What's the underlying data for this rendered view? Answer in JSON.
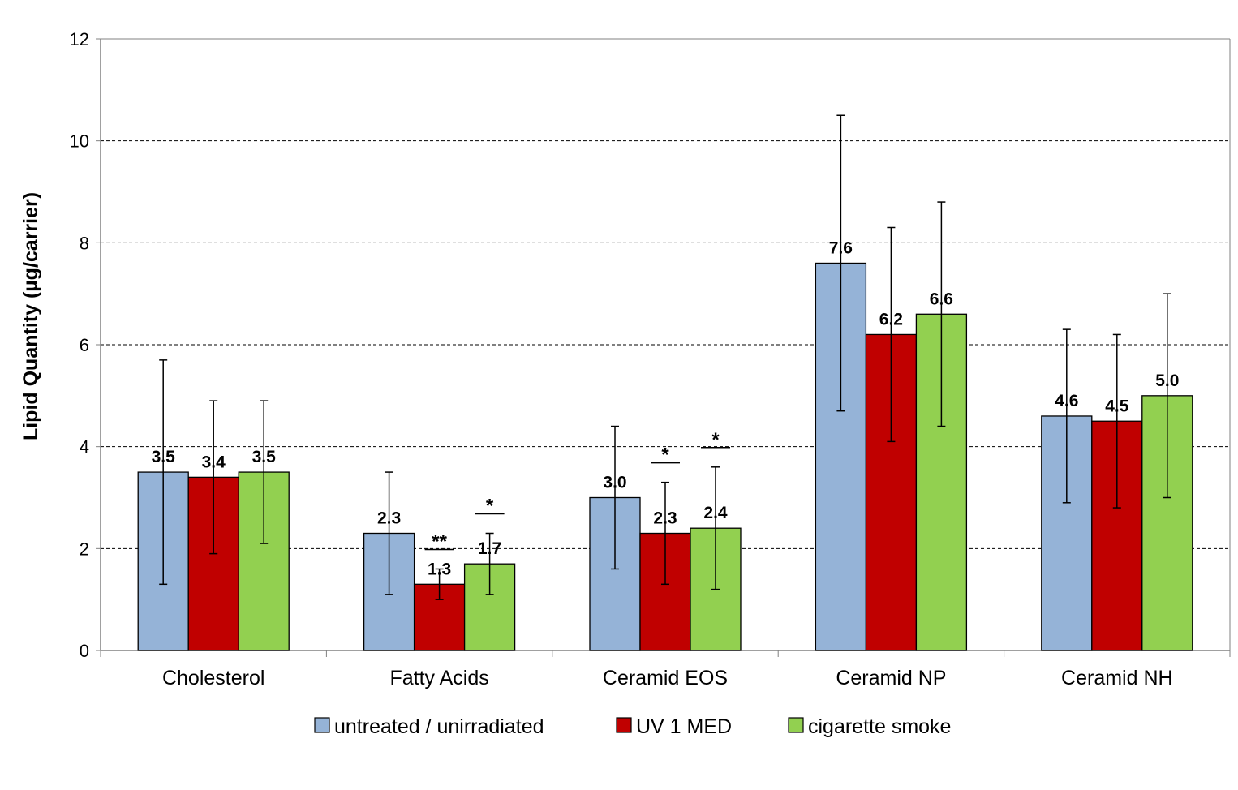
{
  "chart_data": {
    "type": "bar",
    "title": "",
    "xlabel": "",
    "ylabel": "Lipid Quantity (µg/carrier)",
    "ylim": [
      0,
      12
    ],
    "yticks": [
      0,
      2,
      4,
      6,
      8,
      10,
      12
    ],
    "grid": "horizontal dashed",
    "legend_position": "bottom",
    "categories": [
      "Cholesterol",
      "Fatty Acids",
      "Ceramid EOS",
      "Ceramid NP",
      "Ceramid NH"
    ],
    "series": [
      {
        "name": "untreated / unirradiated",
        "color": "#95b3d7",
        "values": [
          3.5,
          2.3,
          3.0,
          7.6,
          4.6
        ],
        "labels": [
          "3.5",
          "2.3",
          "3.0",
          "7.6",
          "4.6"
        ],
        "error_low": [
          1.3,
          1.1,
          1.6,
          4.7,
          2.9
        ],
        "error_high": [
          5.7,
          3.5,
          4.4,
          10.5,
          6.3
        ],
        "significance": [
          "",
          "",
          "",
          "",
          ""
        ]
      },
      {
        "name": "UV 1 MED",
        "color": "#c00000",
        "values": [
          3.4,
          1.3,
          2.3,
          6.2,
          4.5
        ],
        "labels": [
          "3.4",
          "1.3",
          "2.3",
          "6.2",
          "4.5"
        ],
        "error_low": [
          1.9,
          1.0,
          1.3,
          4.1,
          2.8
        ],
        "error_high": [
          4.9,
          1.6,
          3.3,
          8.3,
          6.2
        ],
        "significance": [
          "",
          "**",
          "*",
          "",
          ""
        ]
      },
      {
        "name": "cigarette smoke",
        "color": "#92d050",
        "values": [
          3.5,
          1.7,
          2.4,
          6.6,
          5.0
        ],
        "labels": [
          "3.5",
          "1.7",
          "2.4",
          "6.6",
          "5.0"
        ],
        "error_low": [
          2.1,
          1.1,
          1.2,
          4.4,
          3.0
        ],
        "error_high": [
          4.9,
          2.3,
          3.6,
          8.8,
          7.0
        ],
        "significance": [
          "",
          "*",
          "*",
          "",
          ""
        ]
      }
    ]
  }
}
